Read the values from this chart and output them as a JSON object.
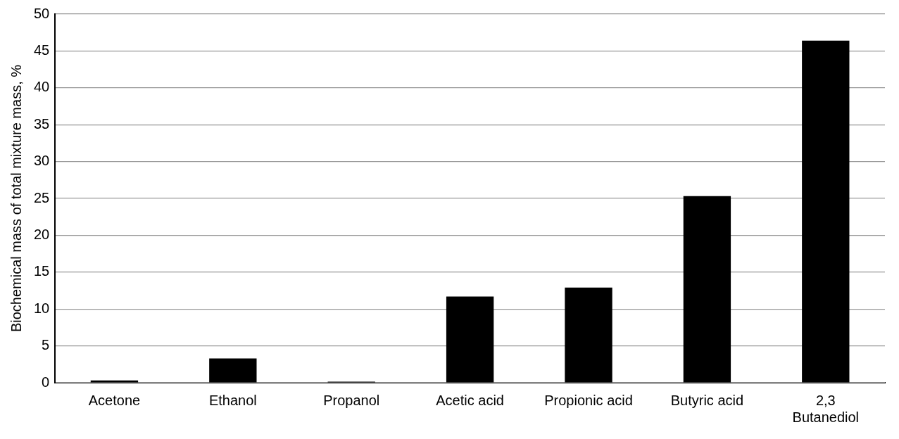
{
  "chart_data": {
    "type": "bar",
    "ylabel": "Biochemical mass of total mixture mass, %",
    "categories": [
      "Acetone",
      "Ethanol",
      "Propanol",
      "Acetic acid",
      "Propionic acid",
      "Butyric acid",
      "2,3\nButanediol"
    ],
    "values": [
      0.3,
      3.3,
      0.15,
      11.7,
      12.9,
      25.3,
      46.4
    ],
    "color": "#000000",
    "ylim": [
      0,
      50
    ],
    "yticks": [
      0,
      5,
      10,
      15,
      20,
      25,
      30,
      35,
      40,
      45,
      50
    ],
    "grid": "y",
    "legend": false
  }
}
